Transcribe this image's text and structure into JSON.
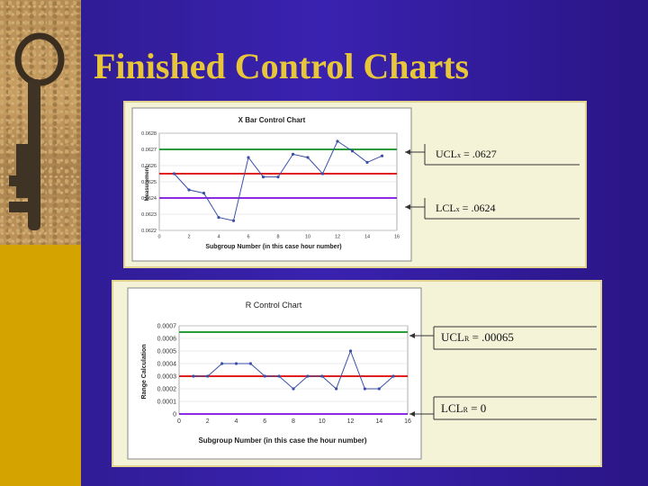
{
  "slide": {
    "title": "Finished Control Charts",
    "colors": {
      "background": "#3a22b0",
      "band": "#d4a300",
      "title": "#e8c63a"
    },
    "icons": [
      "key-icon"
    ]
  },
  "annotations": {
    "xbar_ucl": {
      "label": "UCL",
      "sub": "x",
      "value": "= .0627"
    },
    "xbar_lcl": {
      "label": "LCL",
      "sub": "x",
      "value": "= .0624"
    },
    "r_ucl": {
      "label": "UCL",
      "sub": "R",
      "value": "= .00065"
    },
    "r_lcl": {
      "label": "LCL",
      "sub": "R",
      "value": "= 0"
    }
  },
  "chart_data": [
    {
      "type": "line",
      "title": "X Bar Control Chart",
      "xlabel": "Subgroup Number (in this case hour number)",
      "ylabel": "Measurement",
      "xlim": [
        0,
        16
      ],
      "ylim": [
        0.0622,
        0.0628
      ],
      "xticks": [
        0,
        2,
        4,
        6,
        8,
        10,
        12,
        14,
        16
      ],
      "xtick_labels": [
        "0",
        "2",
        "4",
        "6",
        "8",
        "10",
        "12",
        "14",
        "16"
      ],
      "yticks": [
        0.0622,
        0.0623,
        0.0624,
        0.0625,
        0.0626,
        0.0627,
        0.0628
      ],
      "ytick_labels": [
        "0.0622",
        "0.0623",
        "0.0624",
        "0.0625",
        "0.0626",
        "0.0627",
        "0.0628"
      ],
      "grid": "horizontal",
      "x": [
        1,
        2,
        3,
        4,
        5,
        6,
        7,
        8,
        9,
        10,
        11,
        12,
        13,
        14,
        15
      ],
      "values": [
        0.06255,
        0.06245,
        0.06243,
        0.06228,
        0.06226,
        0.06265,
        0.06253,
        0.06253,
        0.06267,
        0.06265,
        0.06255,
        0.06275,
        0.06269,
        0.06262,
        0.06266
      ],
      "reference_lines": [
        {
          "y": 0.0627,
          "color": "#2a9d3a"
        },
        {
          "y": 0.06255,
          "color": "#e02020"
        },
        {
          "y": 0.0624,
          "color": "#8a2be2"
        }
      ],
      "line_color": "#3b4fa8"
    },
    {
      "type": "line",
      "title": "R Control Chart",
      "xlabel": "Subgroup Number (in this case the hour number)",
      "ylabel": "Range Calculation",
      "xlim": [
        0,
        16
      ],
      "ylim": [
        0,
        0.0007
      ],
      "xticks": [
        0,
        2,
        4,
        6,
        8,
        10,
        12,
        14,
        16
      ],
      "xtick_labels": [
        "0",
        "2",
        "4",
        "6",
        "8",
        "10",
        "12",
        "14",
        "16"
      ],
      "yticks": [
        0,
        0.0001,
        0.0002,
        0.0003,
        0.0004,
        0.0005,
        0.0006,
        0.0007
      ],
      "ytick_labels": [
        "0",
        "0.0001",
        "0.0002",
        "0.0003",
        "0.0004",
        "0.0005",
        "0.0006",
        "0.0007"
      ],
      "grid": "horizontal",
      "x": [
        1,
        2,
        3,
        4,
        5,
        6,
        7,
        8,
        9,
        10,
        11,
        12,
        13,
        14,
        15
      ],
      "values": [
        0.0003,
        0.0003,
        0.0004,
        0.0004,
        0.0004,
        0.0003,
        0.0003,
        0.0002,
        0.0003,
        0.0003,
        0.0002,
        0.0005,
        0.0002,
        0.0002,
        0.0003
      ],
      "reference_lines": [
        {
          "y": 0.00065,
          "color": "#2a9d3a"
        },
        {
          "y": 0.0003,
          "color": "#e02020"
        },
        {
          "y": 0,
          "color": "#8a2be2"
        }
      ],
      "line_color": "#3b4fa8"
    }
  ]
}
